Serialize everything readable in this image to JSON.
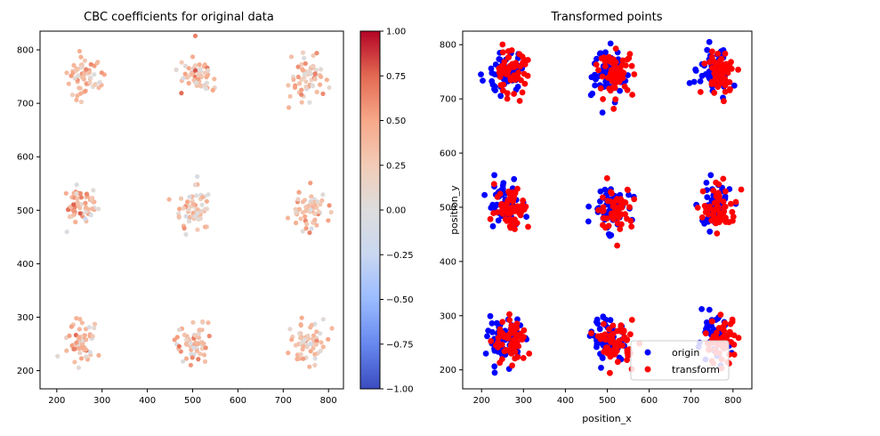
{
  "chart_data": [
    {
      "type": "scatter",
      "title": "CBC coefficients for original data",
      "xlabel": "",
      "ylabel": "",
      "xlim": [
        163,
        833
      ],
      "ylim": [
        166,
        835
      ],
      "xticks": [
        200,
        300,
        400,
        500,
        600,
        700,
        800
      ],
      "yticks": [
        200,
        300,
        400,
        500,
        600,
        700,
        800
      ],
      "grid": false,
      "colorscale": "coolwarm",
      "colorbar": {
        "range": [
          -1.0,
          1.0
        ],
        "ticks": [
          -1.0,
          -0.75,
          -0.5,
          -0.25,
          0.0,
          0.25,
          0.5,
          0.75,
          1.0
        ],
        "tick_labels": [
          "−1.00",
          "−0.75",
          "−0.50",
          "−0.25",
          "0.00",
          "0.25",
          "0.50",
          "0.75",
          "1.00"
        ],
        "colors": [
          "#3b4cc0",
          "#6788ee",
          "#9abbff",
          "#c9d7f0",
          "#dddddd",
          "#f2cbb7",
          "#f7a889",
          "#e26952",
          "#b40426"
        ]
      },
      "clusters": [
        {
          "x": 260,
          "y": 750,
          "points": 60,
          "spread": 18,
          "coef_mean": 0.42
        },
        {
          "x": 510,
          "y": 750,
          "points": 60,
          "spread": 20,
          "coef_mean": 0.38
        },
        {
          "x": 755,
          "y": 750,
          "points": 60,
          "spread": 20,
          "coef_mean": 0.38
        },
        {
          "x": 255,
          "y": 505,
          "points": 60,
          "spread": 18,
          "coef_mean": 0.42
        },
        {
          "x": 505,
          "y": 500,
          "points": 60,
          "spread": 20,
          "coef_mean": 0.35
        },
        {
          "x": 755,
          "y": 500,
          "points": 60,
          "spread": 20,
          "coef_mean": 0.38
        },
        {
          "x": 255,
          "y": 255,
          "points": 60,
          "spread": 18,
          "coef_mean": 0.42
        },
        {
          "x": 505,
          "y": 255,
          "points": 60,
          "spread": 20,
          "coef_mean": 0.38
        },
        {
          "x": 755,
          "y": 255,
          "points": 60,
          "spread": 20,
          "coef_mean": 0.38
        }
      ]
    },
    {
      "type": "scatter",
      "title": "Transformed points",
      "xlabel": "position_x",
      "ylabel": "position_y",
      "xlim": [
        155,
        845
      ],
      "ylim": [
        165,
        825
      ],
      "xticks": [
        200,
        300,
        400,
        500,
        600,
        700,
        800
      ],
      "yticks": [
        200,
        300,
        400,
        500,
        600,
        700,
        800
      ],
      "grid": false,
      "legend": {
        "placement": "lower-center",
        "entries": [
          "origin",
          "transform"
        ]
      },
      "series": [
        {
          "name": "origin",
          "color": "#0000ff",
          "clusters": [
            {
              "x": 255,
              "y": 750,
              "points": 60,
              "spread": 20
            },
            {
              "x": 505,
              "y": 750,
              "points": 60,
              "spread": 20
            },
            {
              "x": 755,
              "y": 750,
              "points": 60,
              "spread": 20
            },
            {
              "x": 255,
              "y": 505,
              "points": 60,
              "spread": 20
            },
            {
              "x": 505,
              "y": 500,
              "points": 60,
              "spread": 20
            },
            {
              "x": 755,
              "y": 500,
              "points": 60,
              "spread": 20
            },
            {
              "x": 255,
              "y": 255,
              "points": 60,
              "spread": 20
            },
            {
              "x": 505,
              "y": 255,
              "points": 60,
              "spread": 20
            },
            {
              "x": 755,
              "y": 255,
              "points": 60,
              "spread": 20
            }
          ]
        },
        {
          "name": "transform",
          "color": "#ff0000",
          "clusters": [
            {
              "x": 270,
              "y": 748,
              "points": 60,
              "spread": 20
            },
            {
              "x": 522,
              "y": 748,
              "points": 60,
              "spread": 20
            },
            {
              "x": 770,
              "y": 748,
              "points": 60,
              "spread": 20
            },
            {
              "x": 272,
              "y": 500,
              "points": 60,
              "spread": 20
            },
            {
              "x": 522,
              "y": 497,
              "points": 60,
              "spread": 20
            },
            {
              "x": 770,
              "y": 498,
              "points": 60,
              "spread": 20
            },
            {
              "x": 270,
              "y": 250,
              "points": 60,
              "spread": 20
            },
            {
              "x": 522,
              "y": 250,
              "points": 60,
              "spread": 20
            },
            {
              "x": 772,
              "y": 252,
              "points": 60,
              "spread": 20
            }
          ]
        }
      ]
    }
  ]
}
